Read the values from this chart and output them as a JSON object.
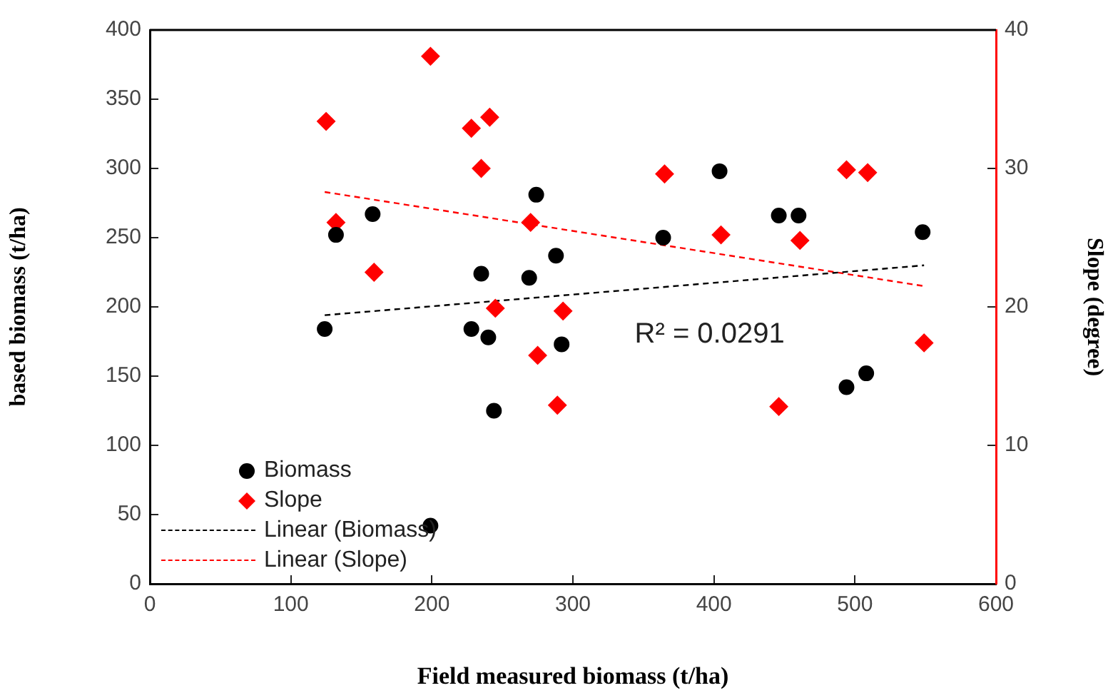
{
  "chart_data": {
    "type": "scatter",
    "xlabel": "Field measured biomass (t/ha)",
    "ylabel": "based biomass (t/ha)",
    "y2label": "Slope (degree)",
    "xlim": [
      0,
      600
    ],
    "xticks": [
      0,
      100,
      200,
      300,
      400,
      500,
      600
    ],
    "ylim": [
      0,
      400
    ],
    "yticks": [
      0,
      50,
      100,
      150,
      200,
      250,
      300,
      350,
      400
    ],
    "y2lim": [
      0,
      40
    ],
    "y2ticks": [
      0,
      10,
      20,
      30,
      40
    ],
    "grid": false,
    "legend": "bottom left",
    "annotations": [
      "R² = 0.0291"
    ],
    "series": [
      {
        "name": "Biomass",
        "color": "#000000",
        "marker": "circle",
        "x": [
          124,
          132,
          158,
          274,
          235,
          269,
          288,
          228,
          240,
          244,
          292,
          199,
          364,
          404,
          446,
          460,
          494,
          508,
          548
        ],
        "values": [
          184,
          252,
          267,
          281,
          224,
          221,
          237,
          184,
          178,
          125,
          173,
          42,
          250,
          298,
          266,
          266,
          142,
          152,
          254
        ]
      },
      {
        "name": "Slope",
        "axis": "y2",
        "color": "#ff0000",
        "marker": "diamond",
        "x": [
          125,
          132,
          159,
          199,
          228,
          241,
          235,
          270,
          245,
          275,
          293,
          289,
          365,
          405,
          461,
          446,
          494,
          509,
          549
        ],
        "values": [
          33.4,
          26.1,
          22.5,
          38.1,
          32.9,
          33.7,
          30.0,
          26.1,
          19.9,
          16.5,
          19.7,
          12.9,
          29.6,
          25.2,
          24.8,
          12.8,
          29.9,
          29.7,
          17.4
        ]
      },
      {
        "name": "Linear (Biomass)",
        "type": "line",
        "color": "#000000",
        "marker": "none",
        "line_style": "dashed",
        "x": [
          124,
          549
        ],
        "values": [
          194,
          230
        ]
      },
      {
        "name": "Linear (Slope)",
        "type": "line",
        "axis": "y2",
        "color": "#ff0000",
        "marker": "none",
        "line_style": "dashed",
        "x": [
          124,
          549
        ],
        "values": [
          28.3,
          21.5
        ]
      }
    ]
  }
}
